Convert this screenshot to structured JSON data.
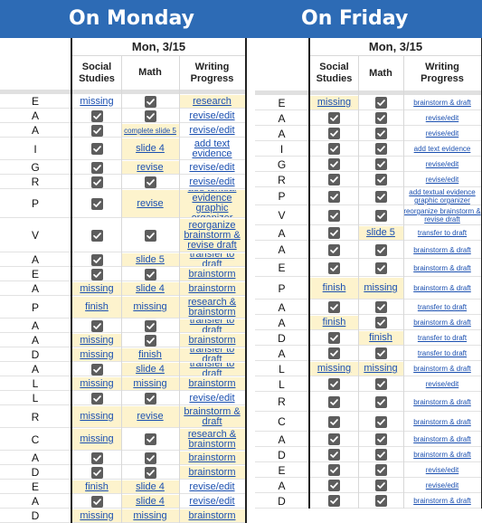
{
  "colors": {
    "banner": "#2d6bb5",
    "highlight": "#fdf3cd",
    "link": "#1a4fb0",
    "check": "#5d5d5d"
  },
  "panels": [
    {
      "title": "On Monday",
      "date": "Mon, 3/15",
      "headers": {
        "social": "Social Studies",
        "math": "Math",
        "writing": "Writing Progress"
      },
      "rows": [
        {
          "letter": "E",
          "ss": {
            "t": "missing"
          },
          "m": {
            "t": "check"
          },
          "w": {
            "t": "research",
            "hl": true
          }
        },
        {
          "letter": "A",
          "ss": {
            "t": "check"
          },
          "m": {
            "t": "check"
          },
          "w": {
            "t": "revise/edit"
          }
        },
        {
          "letter": "A",
          "ss": {
            "t": "check"
          },
          "m": {
            "t": "complete slide 5",
            "hl": true,
            "s": "sm"
          },
          "w": {
            "t": "revise/edit"
          }
        },
        {
          "letter": "I",
          "ss": {
            "t": "check"
          },
          "m": {
            "t": "slide 4",
            "hl": true
          },
          "w": {
            "t": "add text evidence"
          }
        },
        {
          "letter": "G",
          "ss": {
            "t": "check"
          },
          "m": {
            "t": "revise",
            "hl": true
          },
          "w": {
            "t": "revise/edit"
          }
        },
        {
          "letter": "R",
          "ss": {
            "t": "check"
          },
          "m": {
            "t": "check"
          },
          "w": {
            "t": "revise/edit"
          }
        },
        {
          "letter": "P",
          "ss": {
            "t": "check"
          },
          "m": {
            "t": "revise",
            "hl": true
          },
          "w": {
            "t": "add textual evidence graphic organizer",
            "hl": true
          }
        },
        {
          "letter": "V",
          "ss": {
            "t": "check"
          },
          "m": {
            "t": "check"
          },
          "w": {
            "t": "reorganize brainstorm & revise draft",
            "hl": true
          }
        },
        {
          "letter": "A",
          "ss": {
            "t": "check"
          },
          "m": {
            "t": "slide 5",
            "hl": true
          },
          "w": {
            "t": "transfer to draft",
            "hl": true
          }
        },
        {
          "letter": "E",
          "ss": {
            "t": "check"
          },
          "m": {
            "t": "check"
          },
          "w": {
            "t": "brainstorm",
            "hl": true
          }
        },
        {
          "letter": "A",
          "ss": {
            "t": "missing",
            "hl": true
          },
          "m": {
            "t": "slide 4",
            "hl": true
          },
          "w": {
            "t": "brainstorm",
            "hl": true
          }
        },
        {
          "letter": "P",
          "ss": {
            "t": "finish",
            "hl": true
          },
          "m": {
            "t": "missing",
            "hl": true
          },
          "w": {
            "t": "research & brainstorm",
            "hl": true
          }
        },
        {
          "letter": "A",
          "ss": {
            "t": "check"
          },
          "m": {
            "t": "check"
          },
          "w": {
            "t": "transfer to draft",
            "hl": true
          }
        },
        {
          "letter": "A",
          "ss": {
            "t": "missing",
            "hl": true
          },
          "m": {
            "t": "check"
          },
          "w": {
            "t": "brainstorm",
            "hl": true
          }
        },
        {
          "letter": "D",
          "ss": {
            "t": "missing",
            "hl": true
          },
          "m": {
            "t": "finish",
            "hl": true
          },
          "w": {
            "t": "transfer to draft",
            "hl": true
          }
        },
        {
          "letter": "A",
          "ss": {
            "t": "check"
          },
          "m": {
            "t": "slide 4",
            "hl": true
          },
          "w": {
            "t": "transfer to draft",
            "hl": true
          }
        },
        {
          "letter": "L",
          "ss": {
            "t": "missing",
            "hl": true
          },
          "m": {
            "t": "missing",
            "hl": true
          },
          "w": {
            "t": "brainstorm",
            "hl": true
          }
        },
        {
          "letter": "L",
          "ss": {
            "t": "check"
          },
          "m": {
            "t": "check"
          },
          "w": {
            "t": "revise/edit"
          }
        },
        {
          "letter": "R",
          "ss": {
            "t": "missing",
            "hl": true
          },
          "m": {
            "t": "revise",
            "hl": true
          },
          "w": {
            "t": "brainstorm & draft",
            "hl": true
          }
        },
        {
          "letter": "C",
          "ss": {
            "t": "missing",
            "hl": true
          },
          "m": {
            "t": "check"
          },
          "w": {
            "t": "research & brainstorm",
            "hl": true
          }
        },
        {
          "letter": "A",
          "ss": {
            "t": "check"
          },
          "m": {
            "t": "check"
          },
          "w": {
            "t": "brainstorm",
            "hl": true
          }
        },
        {
          "letter": "D",
          "ss": {
            "t": "check"
          },
          "m": {
            "t": "check"
          },
          "w": {
            "t": "brainstorm",
            "hl": true
          }
        },
        {
          "letter": "E",
          "ss": {
            "t": "finish",
            "hl": true
          },
          "m": {
            "t": "slide 4",
            "hl": true
          },
          "w": {
            "t": "revise/edit"
          }
        },
        {
          "letter": "A",
          "ss": {
            "t": "check"
          },
          "m": {
            "t": "slide 4",
            "hl": true
          },
          "w": {
            "t": "revise/edit"
          }
        },
        {
          "letter": "D",
          "ss": {
            "t": "missing",
            "hl": true
          },
          "m": {
            "t": "missing",
            "hl": true
          },
          "w": {
            "t": "brainstorm",
            "hl": true
          }
        }
      ]
    },
    {
      "title": "On Friday",
      "date": "Mon, 3/15",
      "headers": {
        "social": "Social Studies",
        "math": "Math",
        "writing": "Writing Progress"
      },
      "rows": [
        {
          "letter": "E",
          "ss": {
            "t": "missing",
            "hl": true
          },
          "m": {
            "t": "check"
          },
          "w": {
            "t": "brainstorm & draft",
            "s": "sm"
          }
        },
        {
          "letter": "A",
          "ss": {
            "t": "check"
          },
          "m": {
            "t": "check"
          },
          "w": {
            "t": "revise/edit",
            "s": "sm"
          }
        },
        {
          "letter": "A",
          "ss": {
            "t": "check"
          },
          "m": {
            "t": "check"
          },
          "w": {
            "t": "revise/edit",
            "s": "sm"
          }
        },
        {
          "letter": "I",
          "ss": {
            "t": "check"
          },
          "m": {
            "t": "check"
          },
          "w": {
            "t": "add text evidence",
            "s": "sm"
          }
        },
        {
          "letter": "G",
          "ss": {
            "t": "check"
          },
          "m": {
            "t": "check"
          },
          "w": {
            "t": "revise/edit",
            "s": "sm"
          }
        },
        {
          "letter": "R",
          "ss": {
            "t": "check"
          },
          "m": {
            "t": "check"
          },
          "w": {
            "t": "revise/edit",
            "s": "sm"
          }
        },
        {
          "letter": "P",
          "ss": {
            "t": "check"
          },
          "m": {
            "t": "check"
          },
          "w": {
            "t": "add textual evidence graphic organizer",
            "s": "sm"
          }
        },
        {
          "letter": "V",
          "ss": {
            "t": "check"
          },
          "m": {
            "t": "check"
          },
          "w": {
            "t": "reorganize brainstorm & revise draft",
            "s": "sm"
          }
        },
        {
          "letter": "A",
          "ss": {
            "t": "check"
          },
          "m": {
            "t": "slide 5",
            "hl": true
          },
          "w": {
            "t": "transfer to draft",
            "s": "sm"
          }
        },
        {
          "letter": "A",
          "ss": {
            "t": "check"
          },
          "m": {
            "t": "check"
          },
          "w": {
            "t": "brainstorm & draft",
            "s": "sm"
          }
        },
        {
          "letter": "E",
          "ss": {
            "t": "check"
          },
          "m": {
            "t": "check"
          },
          "w": {
            "t": "brainstorm & draft",
            "s": "sm"
          }
        },
        {
          "letter": "P",
          "ss": {
            "t": "finish",
            "hl": true
          },
          "m": {
            "t": "missing",
            "hl": true
          },
          "w": {
            "t": "brainstorm & draft",
            "s": "sm"
          }
        },
        {
          "letter": "A",
          "ss": {
            "t": "check"
          },
          "m": {
            "t": "check"
          },
          "w": {
            "t": "transfer to draft",
            "s": "sm"
          }
        },
        {
          "letter": "A",
          "ss": {
            "t": "finish",
            "hl": true
          },
          "m": {
            "t": "check"
          },
          "w": {
            "t": "brainstorm & draft",
            "s": "sm"
          }
        },
        {
          "letter": "D",
          "ss": {
            "t": "check"
          },
          "m": {
            "t": "finish",
            "hl": true
          },
          "w": {
            "t": "transfer to draft",
            "s": "sm"
          }
        },
        {
          "letter": "A",
          "ss": {
            "t": "check"
          },
          "m": {
            "t": "check"
          },
          "w": {
            "t": "transfer to draft",
            "s": "sm"
          }
        },
        {
          "letter": "L",
          "ss": {
            "t": "missing",
            "hl": true
          },
          "m": {
            "t": "missing",
            "hl": true
          },
          "w": {
            "t": "brainstorm & draft",
            "s": "sm"
          }
        },
        {
          "letter": "L",
          "ss": {
            "t": "check"
          },
          "m": {
            "t": "check"
          },
          "w": {
            "t": "revise/edit",
            "s": "sm"
          }
        },
        {
          "letter": "R",
          "ss": {
            "t": "check"
          },
          "m": {
            "t": "check"
          },
          "w": {
            "t": "brainstorm & draft",
            "s": "sm"
          }
        },
        {
          "letter": "C",
          "ss": {
            "t": "check"
          },
          "m": {
            "t": "check"
          },
          "w": {
            "t": "brainstorm & draft",
            "s": "sm"
          }
        },
        {
          "letter": "A",
          "ss": {
            "t": "check"
          },
          "m": {
            "t": "check"
          },
          "w": {
            "t": "brainstorm & draft",
            "s": "sm"
          }
        },
        {
          "letter": "D",
          "ss": {
            "t": "check"
          },
          "m": {
            "t": "check"
          },
          "w": {
            "t": "brainstorm & draft",
            "s": "sm"
          }
        },
        {
          "letter": "E",
          "ss": {
            "t": "check"
          },
          "m": {
            "t": "check"
          },
          "w": {
            "t": "revise/edit",
            "s": "sm"
          }
        },
        {
          "letter": "A",
          "ss": {
            "t": "check"
          },
          "m": {
            "t": "check"
          },
          "w": {
            "t": "revise/edit",
            "s": "sm"
          }
        },
        {
          "letter": "D",
          "ss": {
            "t": "check"
          },
          "m": {
            "t": "check"
          },
          "w": {
            "t": "brainstorm & draft",
            "s": "sm"
          }
        }
      ]
    }
  ]
}
